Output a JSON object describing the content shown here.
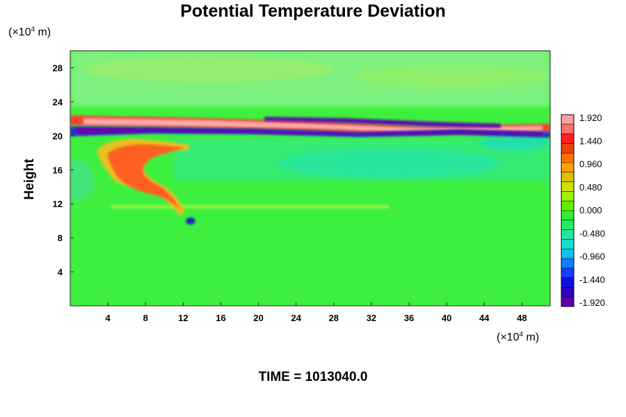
{
  "chart_data": {
    "type": "heatmap",
    "title": "Potential Temperature Deviation",
    "ylabel": "Height",
    "xlabel": "",
    "x_unit": {
      "prefix": "(×10",
      "exp": "4",
      "suffix": " m)"
    },
    "y_unit": {
      "prefix": "(×10",
      "exp": "4",
      "suffix": " m)"
    },
    "x_ticks": [
      4,
      8,
      12,
      16,
      20,
      24,
      28,
      32,
      36,
      40,
      44,
      48
    ],
    "y_ticks": [
      4,
      8,
      12,
      16,
      20,
      24,
      28
    ],
    "xlim": [
      0,
      51
    ],
    "ylim": [
      0,
      30
    ],
    "colorbar": {
      "min": -1.92,
      "max": 1.92,
      "labels": [
        "1.920",
        "1.440",
        "0.960",
        "0.480",
        "0.000",
        "-0.480",
        "-0.960",
        "-1.440",
        "-1.920"
      ]
    },
    "features": [
      {
        "x": [
          0,
          51
        ],
        "y": [
          21.3,
          22.4
        ],
        "value": 1.9
      },
      {
        "x": [
          0,
          51
        ],
        "y": [
          20.0,
          20.9
        ],
        "value": -1.9
      },
      {
        "x": [
          4,
          14
        ],
        "y": [
          13,
          19
        ],
        "value": 1.3
      },
      {
        "x": [
          11,
          13
        ],
        "y": [
          9.5,
          10.5
        ],
        "value": -1.6
      }
    ],
    "background_value": 0.1
  },
  "footer": {
    "time_label": "TIME = 1013040.0"
  }
}
